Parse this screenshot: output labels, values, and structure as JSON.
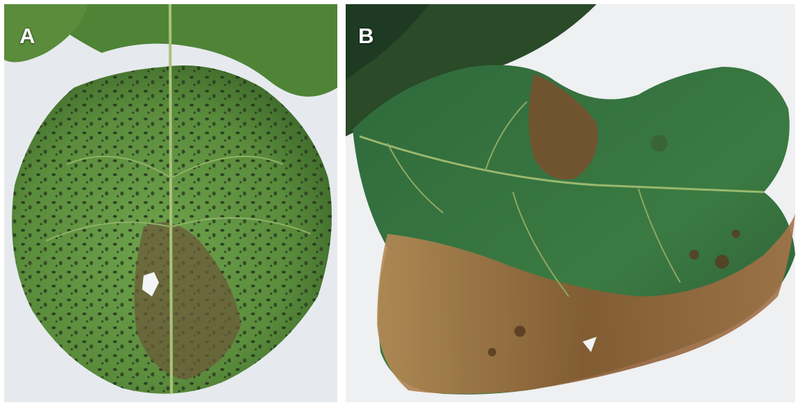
{
  "panels": [
    {
      "label": "A",
      "subject": "leaf-with-dark-spots",
      "colors": {
        "background": "#e6eaee",
        "leaf": "#5f9440",
        "leaf_dark": "#3f6b2b",
        "spots": "#25321f",
        "necrosis": "#6b5a3a"
      }
    },
    {
      "label": "B",
      "subject": "leaf-with-brown-necrosis",
      "colors": {
        "background": "#eef0f2",
        "leaf": "#2f6a3b",
        "leaf_dark": "#1f4a2a",
        "necrosis": "#8a5a32",
        "necrosis_light": "#b88a55"
      }
    }
  ]
}
